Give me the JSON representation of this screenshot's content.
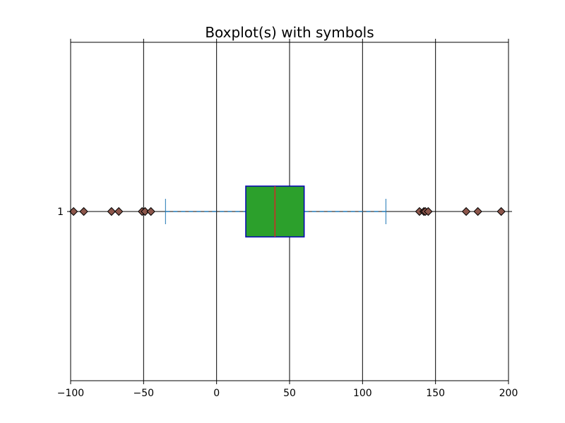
{
  "chart_data": {
    "type": "boxplot",
    "orientation": "horizontal",
    "title": "Boxplot(s) with symbols",
    "xlabel": "",
    "ylabel": "",
    "xlim": [
      -100,
      200
    ],
    "x_ticks": [
      -100,
      -50,
      0,
      50,
      100,
      150,
      200
    ],
    "x_tick_labels": [
      "−100",
      "−50",
      "0",
      "50",
      "100",
      "150",
      "200"
    ],
    "grid": "vertical",
    "categories": [
      "1"
    ],
    "boxes": [
      {
        "label": "1",
        "whisker_low": -35,
        "q1": 20,
        "median": 40,
        "q3": 60,
        "whisker_high": 116,
        "outliers": [
          -98,
          -91,
          -72,
          -67,
          -51,
          -49,
          -45,
          139,
          142,
          143,
          145,
          171,
          179,
          195
        ]
      }
    ],
    "colors": {
      "box_fill": "#2ca02c",
      "box_edge": "#0000b0",
      "median": "#d62728",
      "whisker": "#1f77b4",
      "outlier_fill": "#8c564b",
      "outlier_edge": "#000000",
      "grid": "#000000"
    }
  }
}
